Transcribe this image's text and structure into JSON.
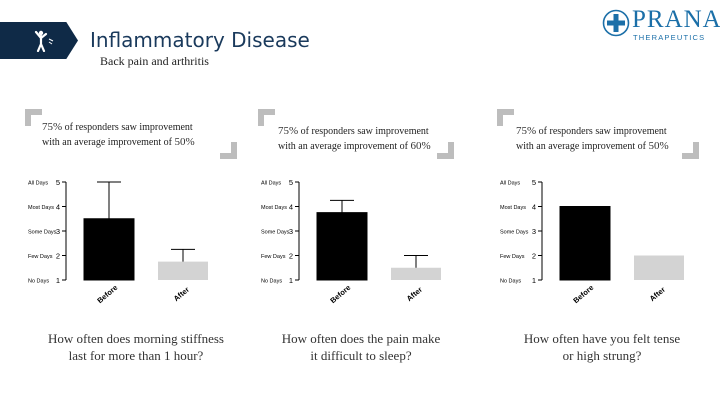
{
  "header": {
    "title": "Inflammatory Disease",
    "subtitle": "Back pain and arthritis",
    "icon": "person-stretching-icon"
  },
  "logo": {
    "word": "PRANA",
    "tagline": "THERAPEUTICS",
    "mark_color": "#1b6fa8"
  },
  "colors": {
    "before_bar": "#000000",
    "after_bar": "#d3d3d3",
    "header": "#0f2a47"
  },
  "panels": [
    {
      "pct": "75%",
      "line1": " of responders saw improvement",
      "line2_prefix": "with an average improvement of ",
      "avg": "50%",
      "question_line1": "How often does morning stiffness",
      "question_line2": "last for more than 1 hour?"
    },
    {
      "pct": "75%",
      "line1": " of responders saw improvement",
      "line2_prefix": "with an average improvement of ",
      "avg": "60%",
      "question_line1": "How often does the pain make",
      "question_line2": "it difficult to sleep?"
    },
    {
      "pct": "75%",
      "line1": " of responders saw improvement",
      "line2_prefix": "with an average improvement of ",
      "avg": "50%",
      "question_line1": "How often have you felt tense",
      "question_line2": "or high strung?"
    }
  ],
  "chart_data": [
    {
      "type": "bar",
      "categories": [
        "Before",
        "After"
      ],
      "series": [
        {
          "values": [
            3.5,
            1.75
          ]
        }
      ],
      "errors": [
        1.5,
        0.5
      ],
      "ylim": [
        1,
        5
      ],
      "yticks": [
        1,
        2,
        3,
        4,
        5
      ],
      "ytick_labels": [
        "No Days",
        "Few Days",
        "Some Days",
        "Most Days",
        "All Days"
      ],
      "grid": false
    },
    {
      "type": "bar",
      "categories": [
        "Before",
        "After"
      ],
      "series": [
        {
          "values": [
            3.75,
            1.5
          ]
        }
      ],
      "errors": [
        0.5,
        0.5
      ],
      "ylim": [
        1,
        5
      ],
      "yticks": [
        1,
        2,
        3,
        4,
        5
      ],
      "ytick_labels": [
        "No Days",
        "Few Days",
        "Some Days",
        "Most Days",
        "All Days"
      ],
      "grid": false
    },
    {
      "type": "bar",
      "categories": [
        "Before",
        "After"
      ],
      "series": [
        {
          "values": [
            4.0,
            2.0
          ]
        }
      ],
      "errors": [
        0,
        0
      ],
      "ylim": [
        1,
        5
      ],
      "yticks": [
        1,
        2,
        3,
        4,
        5
      ],
      "ytick_labels": [
        "No Days",
        "Few Days",
        "Some Days",
        "Most Days",
        "All Days"
      ],
      "grid": false
    }
  ]
}
